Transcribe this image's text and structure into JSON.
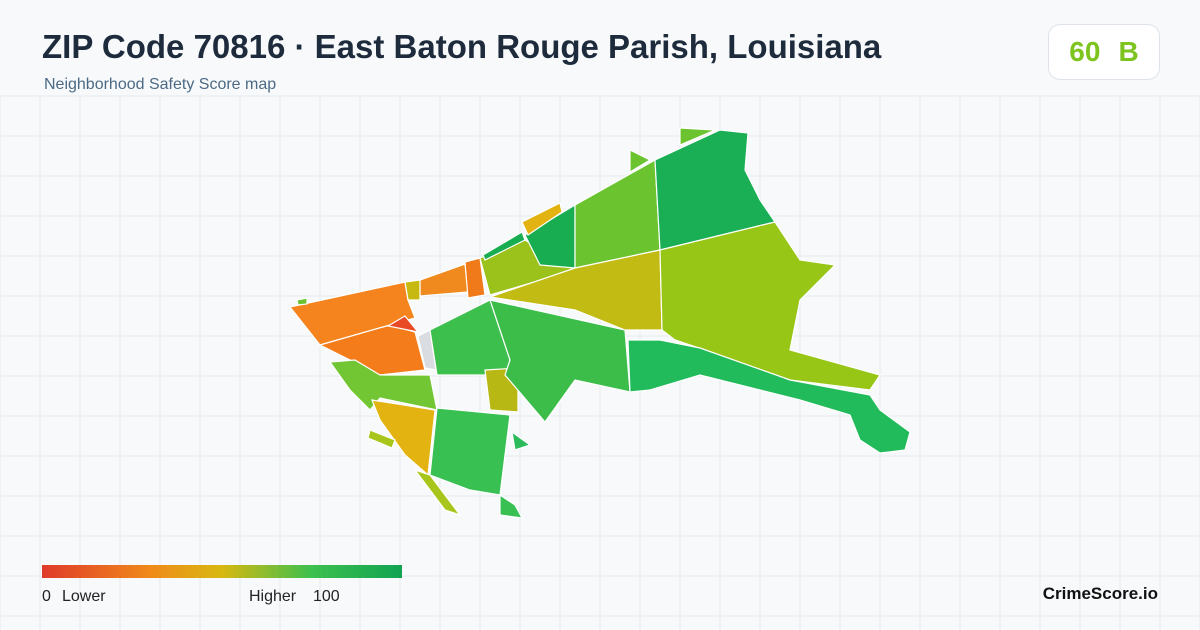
{
  "header": {
    "title": "ZIP Code 70816 · East Baton Rouge Parish, Louisiana",
    "subtitle": "Neighborhood Safety Score map"
  },
  "score": {
    "value": 60,
    "grade": "B"
  },
  "legend": {
    "min": 0,
    "min_label": "Lower",
    "max_label": "Higher",
    "max": 100
  },
  "brand": "CrimeScore.io"
}
